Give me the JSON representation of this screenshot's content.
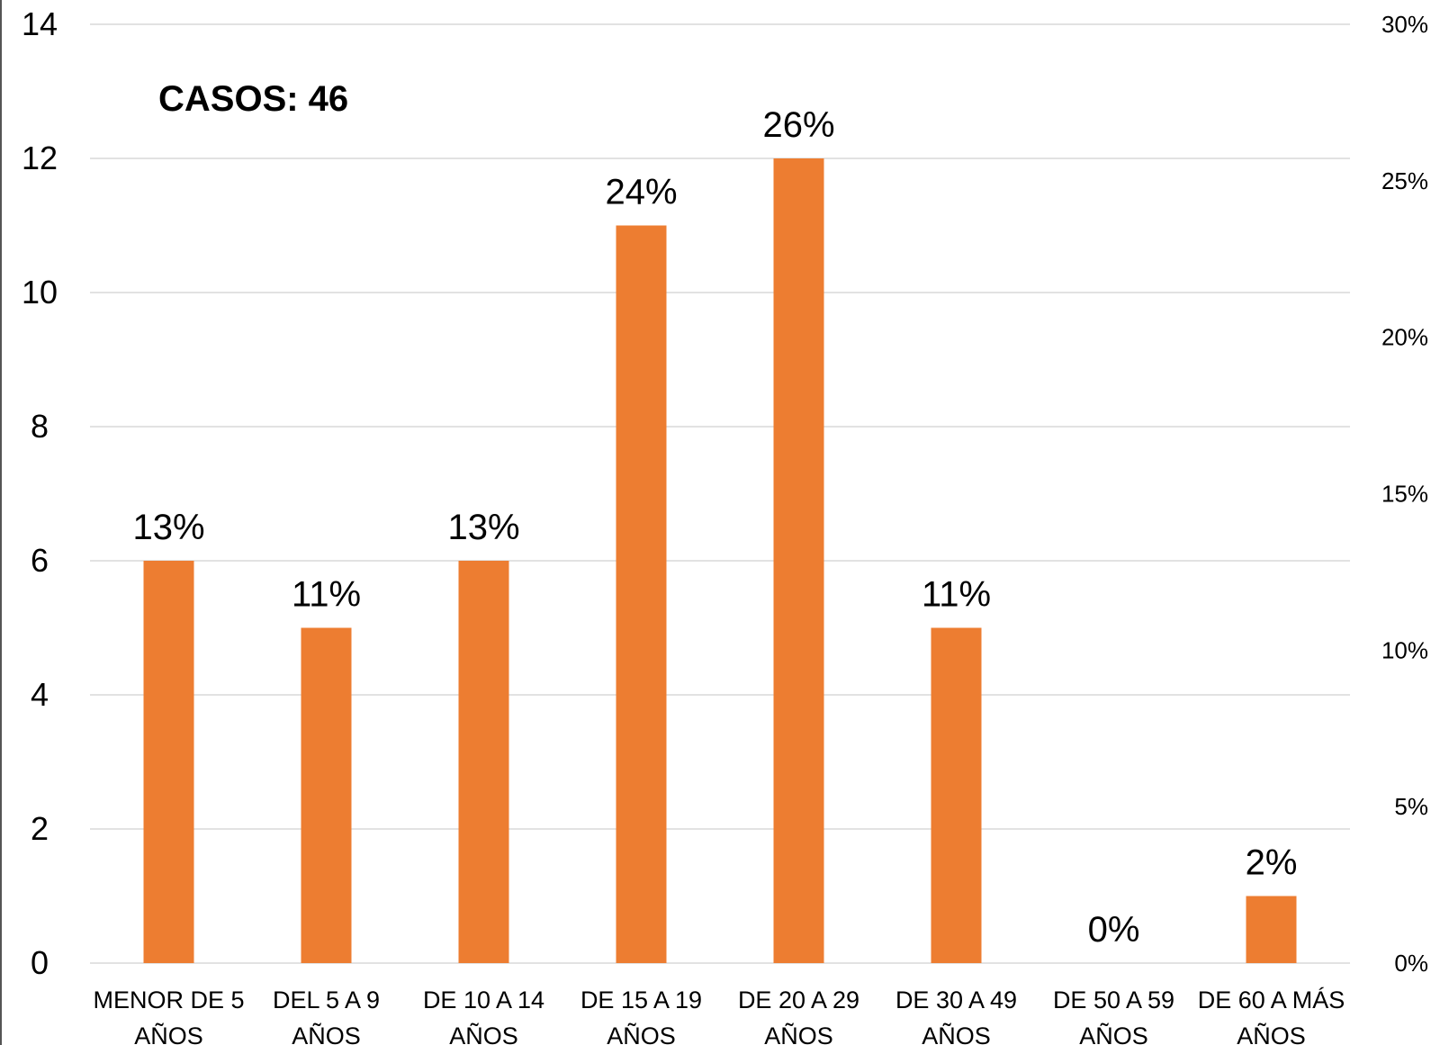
{
  "colors": {
    "bar": "#ED7D31",
    "grid": "#D9D9D9",
    "text": "#000000"
  },
  "annotation": "CASOS: 46",
  "chart_data": {
    "type": "bar",
    "title": "",
    "xlabel": "",
    "ylabel": "",
    "grid": true,
    "legend": "none",
    "categories": [
      [
        "MENOR DE 5",
        "AÑOS"
      ],
      [
        "DEL 5 A 9",
        "AÑOS"
      ],
      [
        "DE 10 A 14",
        "AÑOS"
      ],
      [
        "DE 15 A 19",
        "AÑOS"
      ],
      [
        "DE 20 A 29",
        "AÑOS"
      ],
      [
        "DE 30 A 49",
        "AÑOS"
      ],
      [
        "DE 50 A 59",
        "AÑOS"
      ],
      [
        "DE 60 A MÁS",
        "AÑOS"
      ]
    ],
    "values": [
      6,
      5,
      6,
      11,
      12,
      5,
      0,
      1
    ],
    "data_labels": [
      "13%",
      "11%",
      "13%",
      "24%",
      "26%",
      "11%",
      "0%",
      "2%"
    ],
    "ylim": [
      0,
      14
    ],
    "yticks": [
      "0",
      "2",
      "4",
      "6",
      "8",
      "10",
      "12",
      "14"
    ],
    "y2lim": [
      0,
      30
    ],
    "y2ticks": [
      "0%",
      "5%",
      "10%",
      "15%",
      "20%",
      "25%",
      "30%"
    ]
  }
}
